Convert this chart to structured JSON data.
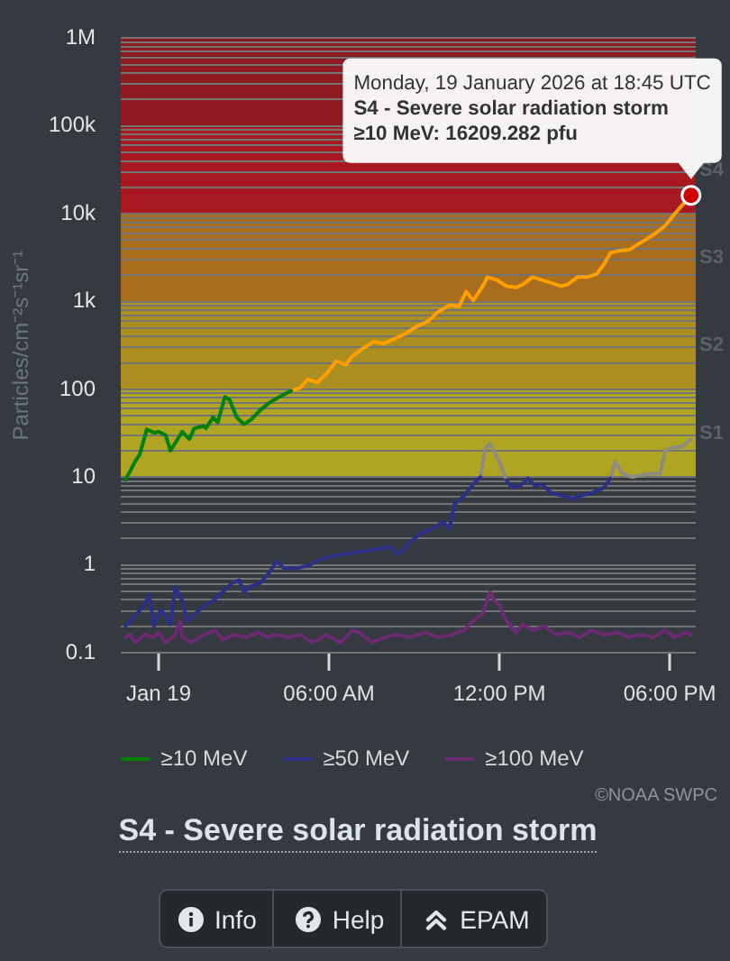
{
  "chart_data": {
    "type": "line",
    "title": "S4 - Severe solar radiation storm",
    "ylabel": "Particles/cm⁻²s⁻¹sr⁻¹",
    "log": true,
    "grid": "y",
    "legend": "bottom",
    "xlim": [
      "2026-01-18T22:40",
      "2026-01-19T18:55"
    ],
    "xticks": [
      {
        "value": "2026-01-19T00:00",
        "label": "Jan 19"
      },
      {
        "value": "2026-01-19T06:00",
        "label": "06:00 AM"
      },
      {
        "value": "2026-01-19T12:00",
        "label": "12:00 PM"
      },
      {
        "value": "2026-01-19T18:00",
        "label": "06:00 PM"
      }
    ],
    "ylim": [
      0.1,
      1000000
    ],
    "yticks": [
      0.1,
      {
        "value": 0.2,
        "label": null
      },
      {
        "value": 0.3,
        "label": null
      },
      {
        "value": 0.4,
        "label": null
      },
      {
        "value": 0.5,
        "label": null
      },
      {
        "value": 0.6,
        "label": null
      },
      {
        "value": 0.7,
        "label": null
      },
      {
        "value": 0.8,
        "label": null
      },
      {
        "value": 0.9,
        "label": null
      },
      1,
      {
        "value": 2,
        "label": null
      },
      {
        "value": 3,
        "label": null
      },
      {
        "value": 4,
        "label": null
      },
      {
        "value": 5,
        "label": null
      },
      {
        "value": 6,
        "label": null
      },
      {
        "value": 7,
        "label": null
      },
      {
        "value": 8,
        "label": null
      },
      {
        "value": 9,
        "label": null
      },
      10,
      {
        "value": 20,
        "label": null
      },
      {
        "value": 30,
        "label": null
      },
      {
        "value": 40,
        "label": null
      },
      {
        "value": 50,
        "label": null
      },
      {
        "value": 60,
        "label": null
      },
      {
        "value": 70,
        "label": null
      },
      {
        "value": 80,
        "label": null
      },
      {
        "value": 90,
        "label": null
      },
      100,
      {
        "value": 200,
        "label": null
      },
      {
        "value": 300,
        "label": null
      },
      {
        "value": 400,
        "label": null
      },
      {
        "value": 500,
        "label": null
      },
      {
        "value": 600,
        "label": null
      },
      {
        "value": 700,
        "label": null
      },
      {
        "value": 800,
        "label": null
      },
      {
        "value": 900,
        "label": null
      },
      {
        "value": 1000,
        "label": "1k"
      },
      {
        "value": 2000,
        "label": null
      },
      {
        "value": 3000,
        "label": null
      },
      {
        "value": 4000,
        "label": null
      },
      {
        "value": 5000,
        "label": null
      },
      {
        "value": 6000,
        "label": null
      },
      {
        "value": 7000,
        "label": null
      },
      {
        "value": 8000,
        "label": null
      },
      {
        "value": 9000,
        "label": null
      },
      {
        "value": 10000,
        "label": "10k"
      },
      {
        "value": 20000,
        "label": null
      },
      {
        "value": 30000,
        "label": null
      },
      {
        "value": 40000,
        "label": null
      },
      {
        "value": 50000,
        "label": null
      },
      {
        "value": 60000,
        "label": null
      },
      {
        "value": 70000,
        "label": null
      },
      {
        "value": 80000,
        "label": null
      },
      {
        "value": 90000,
        "label": null
      },
      {
        "value": 100000,
        "label": "100k"
      },
      {
        "value": 200000,
        "label": null
      },
      {
        "value": 300000,
        "label": null
      },
      {
        "value": 400000,
        "label": null
      },
      {
        "value": 500000,
        "label": null
      },
      {
        "value": 600000,
        "label": null
      },
      {
        "value": 700000,
        "label": null
      },
      {
        "value": 800000,
        "label": null
      },
      {
        "value": 900000,
        "label": null
      },
      {
        "value": 1000000,
        "label": "1M"
      }
    ],
    "bands": [
      {
        "axis": "y",
        "from": 10,
        "to": 100,
        "label": "S1",
        "color": "#b0a523"
      },
      {
        "axis": "y",
        "from": 100,
        "to": 1000,
        "label": "S2",
        "color": "#ab8e1f"
      },
      {
        "axis": "y",
        "from": 1000,
        "to": 10000,
        "label": "S3",
        "color": "#a86e1e"
      },
      {
        "axis": "y",
        "from": 10000,
        "to": 100000,
        "label": "S4",
        "color": "#a8191f"
      },
      {
        "axis": "y",
        "from": 100000,
        "to": 1000000,
        "color": "#8c1a20"
      }
    ],
    "series": [
      {
        "name": "≥10 MeV",
        "color": "#008000",
        "x": [
          "2026-01-18T22:50",
          "2026-01-18T23:10",
          "2026-01-18T23:20",
          "2026-01-18T23:35",
          "2026-01-18T23:50",
          "2026-01-19T00:00",
          "2026-01-19T00:15",
          "2026-01-19T00:25",
          "2026-01-19T00:40",
          "2026-01-19T00:50",
          "2026-01-19T01:05",
          "2026-01-19T01:15",
          "2026-01-19T01:35",
          "2026-01-19T01:40",
          "2026-01-19T01:55",
          "2026-01-19T02:05",
          "2026-01-19T02:20",
          "2026-01-19T02:30",
          "2026-01-19T02:45",
          "2026-01-19T03:00",
          "2026-01-19T03:15",
          "2026-01-19T03:35",
          "2026-01-19T03:55",
          "2026-01-19T04:15",
          "2026-01-19T04:40"
        ],
        "values": [
          9.3,
          15,
          18,
          35,
          32,
          33,
          30,
          20,
          27,
          33,
          27,
          36,
          38,
          36,
          48,
          42,
          82,
          76,
          48,
          40,
          45,
          58,
          71,
          82,
          96
        ]
      },
      {
        "color": "#ffa000",
        "x": [
          "2026-01-19T04:40",
          "2026-01-19T05:00",
          "2026-01-19T05:15",
          "2026-01-19T05:35",
          "2026-01-19T05:55",
          "2026-01-19T06:15",
          "2026-01-19T06:35",
          "2026-01-19T06:50",
          "2026-01-19T07:15",
          "2026-01-19T07:35",
          "2026-01-19T07:55",
          "2026-01-19T08:20",
          "2026-01-19T08:45",
          "2026-01-19T09:05",
          "2026-01-19T09:30",
          "2026-01-19T09:50",
          "2026-01-19T10:15",
          "2026-01-19T10:35",
          "2026-01-19T10:50",
          "2026-01-19T11:05",
          "2026-01-19T11:25",
          "2026-01-19T11:35",
          "2026-01-19T11:55",
          "2026-01-19T12:15",
          "2026-01-19T12:35",
          "2026-01-19T12:50",
          "2026-01-19T13:10",
          "2026-01-19T13:30",
          "2026-01-19T13:50",
          "2026-01-19T14:10",
          "2026-01-19T14:25",
          "2026-01-19T14:45",
          "2026-01-19T15:05",
          "2026-01-19T15:25",
          "2026-01-19T15:40",
          "2026-01-19T15:55",
          "2026-01-19T16:15",
          "2026-01-19T16:35",
          "2026-01-19T16:50",
          "2026-01-19T17:10",
          "2026-01-19T17:30",
          "2026-01-19T17:50",
          "2026-01-19T18:10",
          "2026-01-19T18:25",
          "2026-01-19T18:45"
        ],
        "values": [
          96,
          105,
          130,
          120,
          150,
          210,
          190,
          240,
          300,
          350,
          330,
          380,
          440,
          520,
          600,
          760,
          910,
          880,
          1300,
          1030,
          1500,
          1900,
          1760,
          1500,
          1440,
          1570,
          1900,
          1760,
          1630,
          1500,
          1570,
          1900,
          1900,
          2050,
          2600,
          3600,
          3800,
          3900,
          4400,
          5100,
          6000,
          7300,
          9900,
          12300,
          16209.282
        ]
      },
      {
        "name": "≥50 MeV",
        "color": "#2b2f85",
        "x": [
          "2026-01-18T22:50",
          "2026-01-18T23:30",
          "2026-01-18T23:40",
          "2026-01-18T23:50",
          "2026-01-19T00:05",
          "2026-01-19T00:25",
          "2026-01-19T00:35",
          "2026-01-19T00:50",
          "2026-01-19T01:00",
          "2026-01-19T01:15",
          "2026-01-19T01:35",
          "2026-01-19T01:55",
          "2026-01-19T02:15",
          "2026-01-19T02:35",
          "2026-01-19T02:50",
          "2026-01-19T03:00",
          "2026-01-19T03:15",
          "2026-01-19T03:35",
          "2026-01-19T03:55",
          "2026-01-19T04:10",
          "2026-01-19T04:25",
          "2026-01-19T04:50",
          "2026-01-19T05:15",
          "2026-01-19T05:50",
          "2026-01-19T06:20",
          "2026-01-19T07:00",
          "2026-01-19T07:40",
          "2026-01-19T08:10",
          "2026-01-19T08:25",
          "2026-01-19T08:50",
          "2026-01-19T09:15",
          "2026-01-19T09:40",
          "2026-01-19T10:00",
          "2026-01-19T10:15",
          "2026-01-19T10:25",
          "2026-01-19T10:45",
          "2026-01-19T11:05",
          "2026-01-19T11:20",
          "2026-01-19T11:30",
          "2026-01-19T11:40",
          "2026-01-19T11:50",
          "2026-01-19T12:00",
          "2026-01-19T12:15",
          "2026-01-19T12:25",
          "2026-01-19T12:45",
          "2026-01-19T13:00",
          "2026-01-19T13:15",
          "2026-01-19T13:30",
          "2026-01-19T13:50",
          "2026-01-19T14:15",
          "2026-01-19T14:35",
          "2026-01-19T14:50",
          "2026-01-19T15:15",
          "2026-01-19T15:40",
          "2026-01-19T15:55"
        ],
        "values": [
          0.2,
          0.35,
          0.46,
          0.2,
          0.31,
          0.21,
          0.56,
          0.39,
          0.23,
          0.27,
          0.34,
          0.39,
          0.49,
          0.62,
          0.67,
          0.49,
          0.57,
          0.62,
          0.84,
          1.1,
          0.91,
          0.91,
          0.98,
          1.2,
          1.3,
          1.4,
          1.5,
          1.6,
          1.3,
          1.8,
          2.3,
          2.6,
          3.1,
          2.6,
          4.9,
          6.1,
          8.3,
          10,
          null,
          null,
          null,
          null,
          9.3,
          7.7,
          8,
          9.7,
          8,
          8.3,
          6.6,
          6.1,
          5.7,
          6.1,
          6.6,
          7.5,
          9.7
        ]
      },
      {
        "color": "#8c8c80",
        "x": [
          "2026-01-19T11:20",
          "2026-01-19T11:30",
          "2026-01-19T11:40",
          "2026-01-19T11:50",
          "2026-01-19T12:00",
          "2026-01-19T12:15",
          "2026-01-19T13:00",
          "2026-01-19T15:55",
          "2026-01-19T16:05",
          "2026-01-19T16:20",
          "2026-01-19T16:40",
          "2026-01-19T16:55",
          "2026-01-19T17:25",
          "2026-01-19T17:40",
          "2026-01-19T17:50",
          "2026-01-19T18:10",
          "2026-01-19T18:25",
          "2026-01-19T18:45"
        ],
        "values": [
          10,
          21,
          24,
          19,
          15,
          9.3,
          null,
          9.7,
          15,
          11,
          10,
          10.5,
          11,
          11,
          20,
          22,
          22,
          27
        ]
      },
      {
        "name": "≥100 MeV",
        "color": "#6b2a72",
        "x": [
          "2026-01-18T22:50",
          "2026-01-18T23:00",
          "2026-01-18T23:10",
          "2026-01-18T23:30",
          "2026-01-18T23:50",
          "2026-01-19T00:00",
          "2026-01-19T00:15",
          "2026-01-19T00:35",
          "2026-01-19T00:45",
          "2026-01-19T00:50",
          "2026-01-19T01:10",
          "2026-01-19T01:35",
          "2026-01-19T02:00",
          "2026-01-19T02:15",
          "2026-01-19T02:40",
          "2026-01-19T03:05",
          "2026-01-19T03:30",
          "2026-01-19T03:50",
          "2026-01-19T04:05",
          "2026-01-19T04:35",
          "2026-01-19T05:00",
          "2026-01-19T05:25",
          "2026-01-19T05:55",
          "2026-01-19T06:25",
          "2026-01-19T06:50",
          "2026-01-19T07:05",
          "2026-01-19T07:30",
          "2026-01-19T08:00",
          "2026-01-19T08:25",
          "2026-01-19T08:50",
          "2026-01-19T09:25",
          "2026-01-19T09:50",
          "2026-01-19T10:20",
          "2026-01-19T10:45",
          "2026-01-19T11:05",
          "2026-01-19T11:25",
          "2026-01-19T11:40",
          "2026-01-19T11:50",
          "2026-01-19T12:00",
          "2026-01-19T12:15",
          "2026-01-19T12:35",
          "2026-01-19T12:50",
          "2026-01-19T13:10",
          "2026-01-19T13:35",
          "2026-01-19T14:00",
          "2026-01-19T14:25",
          "2026-01-19T14:50",
          "2026-01-19T15:15",
          "2026-01-19T15:40",
          "2026-01-19T16:10",
          "2026-01-19T16:35",
          "2026-01-19T16:55",
          "2026-01-19T17:25",
          "2026-01-19T17:50",
          "2026-01-19T18:10",
          "2026-01-19T18:35",
          "2026-01-19T18:45"
        ],
        "values": [
          0.15,
          0.16,
          0.13,
          0.16,
          0.15,
          0.17,
          0.13,
          0.16,
          0.23,
          0.15,
          0.13,
          0.16,
          0.18,
          0.14,
          0.16,
          0.15,
          0.17,
          0.15,
          0.16,
          0.15,
          0.16,
          0.13,
          0.16,
          0.13,
          0.18,
          0.17,
          0.13,
          0.15,
          0.16,
          0.15,
          0.17,
          0.15,
          0.16,
          0.18,
          0.23,
          0.28,
          0.49,
          0.39,
          0.35,
          0.23,
          0.17,
          0.21,
          0.18,
          0.2,
          0.16,
          0.17,
          0.15,
          0.18,
          0.16,
          0.17,
          0.15,
          0.16,
          0.15,
          0.18,
          0.15,
          0.17,
          0.16
        ]
      }
    ],
    "annotations": [
      {
        "text": "Monday, 19 January 2026 at 18:45 UTC\nS4 - Severe solar radiation storm\n≥10 MeV: 16209.282 pfu",
        "x": "2026-01-19T18:45",
        "y": 16209.282
      },
      "©NOAA SWPC",
      "Info",
      "Help",
      "EPAM"
    ]
  }
}
